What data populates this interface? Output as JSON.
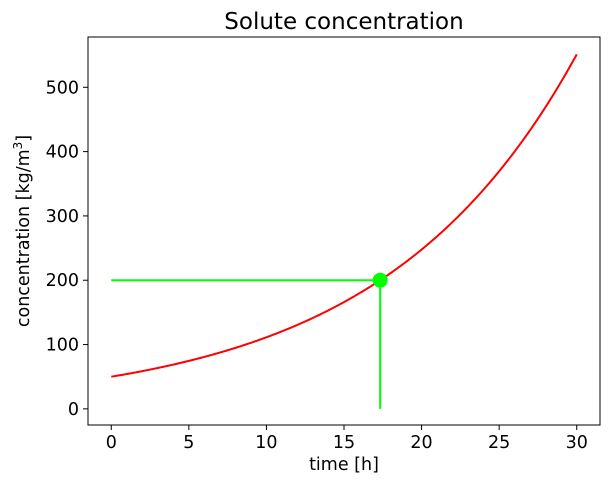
{
  "chart_data": {
    "type": "line",
    "title": "Solute concentration",
    "xlabel": "time [h]",
    "ylabel_main": "concentration [kg/m",
    "ylabel_sup": "3",
    "ylabel_end": "]",
    "xlim": [
      -1.5,
      31.5
    ],
    "ylim": [
      -25.1,
      578.2
    ],
    "x_ticks": [
      0,
      5,
      10,
      15,
      20,
      25,
      30
    ],
    "y_ticks": [
      0,
      100,
      200,
      300,
      400,
      500
    ],
    "grid": false,
    "series": [
      {
        "color": "#ff0000",
        "function": "50*exp(0.08*t)",
        "x_range": [
          0,
          30
        ]
      }
    ],
    "annotation": {
      "color": "#00ff00",
      "point": {
        "x": 17.33,
        "y": 200
      },
      "horizontal_from_x": 0,
      "vertical_to_y": 0
    }
  }
}
